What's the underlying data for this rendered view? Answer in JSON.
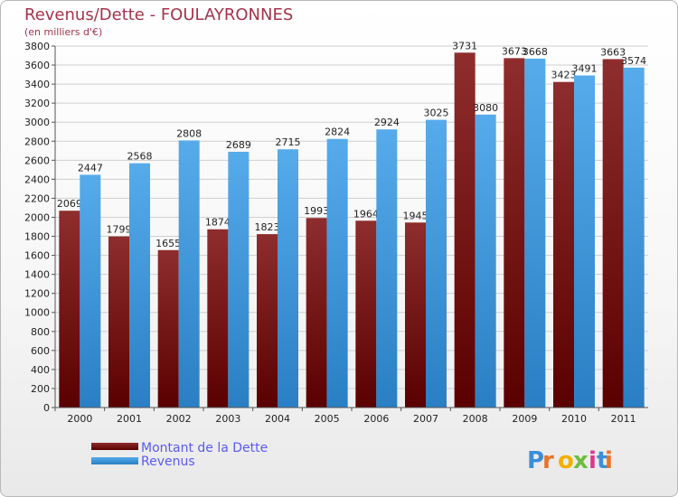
{
  "chart_data": {
    "type": "bar",
    "title": "Revenus/Dette - FOULAYRONNES",
    "subtitle": "(en milliers d'€)",
    "categories": [
      "2000",
      "2001",
      "2002",
      "2003",
      "2004",
      "2005",
      "2006",
      "2007",
      "2008",
      "2009",
      "2010",
      "2011"
    ],
    "series": [
      {
        "name": "Montant de la Dette",
        "color": "#7b1a1a",
        "values": [
          2069,
          1799,
          1655,
          1874,
          1823,
          1993,
          1964,
          1945,
          3731,
          3673,
          3423,
          3663
        ]
      },
      {
        "name": "Revenus",
        "color": "#3f9de6",
        "values": [
          2447,
          2568,
          2808,
          2689,
          2715,
          2824,
          2924,
          3025,
          3080,
          3668,
          3491,
          3574
        ]
      }
    ],
    "ylim": [
      0,
      3800
    ],
    "yticks": [
      0,
      200,
      400,
      600,
      800,
      1000,
      1200,
      1400,
      1600,
      1800,
      2000,
      2200,
      2400,
      2600,
      2800,
      3000,
      3200,
      3400,
      3600,
      3800
    ],
    "grid": true,
    "legend_position": "bottom-left"
  },
  "logo": {
    "text": "Proxiti"
  }
}
